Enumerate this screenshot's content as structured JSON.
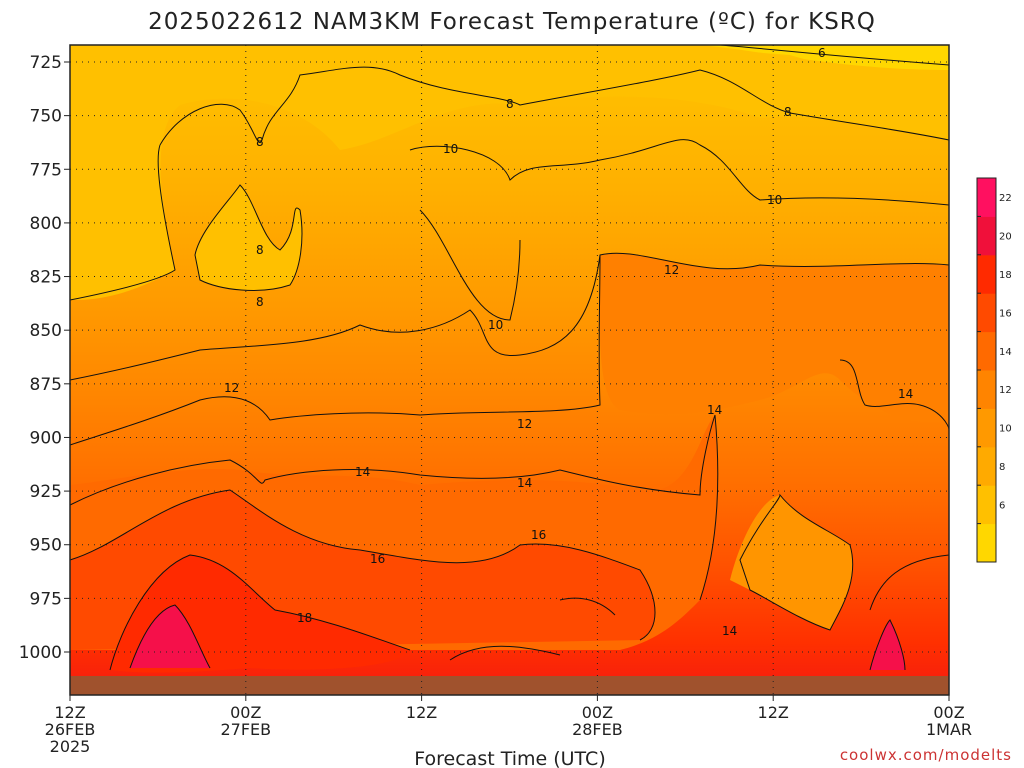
{
  "title": "2025022612 NAM3KM Forecast Temperature (ºC) for KSRQ",
  "credit": "coolwx.com/modelts",
  "chart_data": {
    "type": "heatmap",
    "title": "2025022612 NAM3KM Forecast Temperature (ºC) for KSRQ",
    "xlabel": "Forecast Time (UTC)",
    "ylabel": "",
    "x_ticks": [
      {
        "lines": [
          "12Z",
          "26FEB",
          "2025"
        ]
      },
      {
        "lines": [
          "00Z",
          "27FEB"
        ]
      },
      {
        "lines": [
          "12Z"
        ]
      },
      {
        "lines": [
          "00Z",
          "28FEB"
        ]
      },
      {
        "lines": [
          "12Z"
        ]
      },
      {
        "lines": [
          "00Z",
          "1MAR"
        ]
      }
    ],
    "y_ticks": [
      "725",
      "750",
      "775",
      "800",
      "825",
      "850",
      "875",
      "900",
      "925",
      "950",
      "975",
      "1000"
    ],
    "ylim": [
      1015,
      715
    ],
    "grid": true,
    "colorbar": {
      "levels": [
        4,
        6,
        8,
        10,
        12,
        14,
        16,
        18,
        20,
        22,
        24
      ],
      "labels": [
        "6",
        "8",
        "10",
        "12",
        "14",
        "16",
        "18",
        "20",
        "22"
      ],
      "colors": [
        "#ffd700",
        "#ffc000",
        "#ffaa00",
        "#ff9900",
        "#ff8400",
        "#ff6a00",
        "#ff4a00",
        "#ff2a00",
        "#f0103a",
        "#ff1060"
      ]
    },
    "approx_temperature_bands": [
      {
        "level_range": [
          715,
          745
        ],
        "temp": 6
      },
      {
        "level_range": [
          745,
          800
        ],
        "temp": 8
      },
      {
        "level_range": [
          800,
          850
        ],
        "temp": 10
      },
      {
        "level_range": [
          850,
          895
        ],
        "temp": 12
      },
      {
        "level_range": [
          895,
          925
        ],
        "temp": 14
      },
      {
        "level_range": [
          925,
          955
        ],
        "temp": 16
      },
      {
        "level_range": [
          955,
          1015
        ],
        "temp": 18
      }
    ],
    "contour_labels": [
      {
        "value": "6"
      },
      {
        "value": "8"
      },
      {
        "value": "8"
      },
      {
        "value": "8"
      },
      {
        "value": "8"
      },
      {
        "value": "8"
      },
      {
        "value": "10"
      },
      {
        "value": "10"
      },
      {
        "value": "10"
      },
      {
        "value": "12"
      },
      {
        "value": "12"
      },
      {
        "value": "12"
      },
      {
        "value": "14"
      },
      {
        "value": "14"
      },
      {
        "value": "14"
      },
      {
        "value": "14"
      },
      {
        "value": "14"
      },
      {
        "value": "16"
      },
      {
        "value": "16"
      },
      {
        "value": "18"
      }
    ]
  }
}
